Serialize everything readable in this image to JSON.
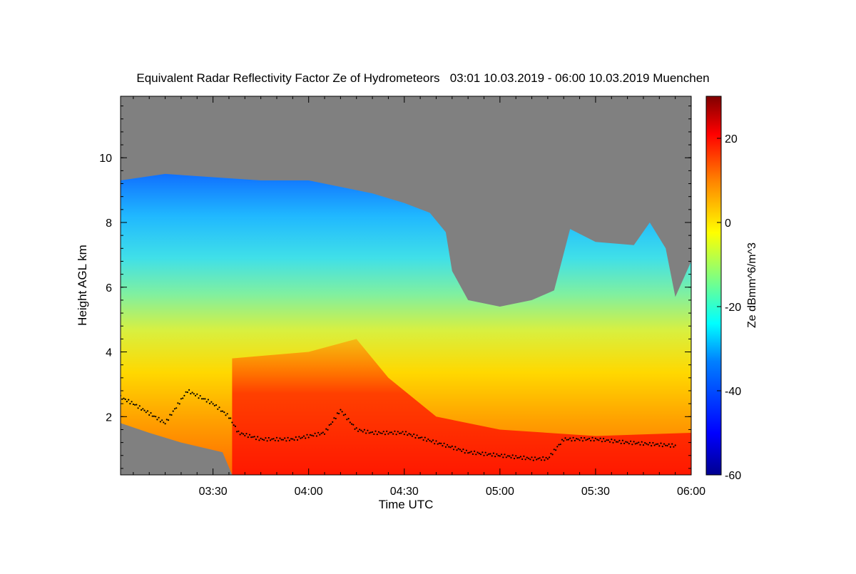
{
  "chart_data": {
    "type": "heatmap",
    "title": "Equivalent Radar Reflectivity Factor Ze of Hydrometeors   03:01 10.03.2019 - 06:00 10.03.2019 Muenchen",
    "xlabel": "Time UTC",
    "ylabel": "Height AGL km",
    "xlim": [
      "03:01",
      "06:00"
    ],
    "ylim": [
      0.2,
      11.9
    ],
    "x_ticks": [
      "03:30",
      "04:00",
      "04:30",
      "05:00",
      "05:30",
      "06:00"
    ],
    "y_ticks": [
      2,
      4,
      6,
      8,
      10
    ],
    "colorbar": {
      "label": "Ze dBmm^6/m^3",
      "range": [
        -60,
        30
      ],
      "ticks": [
        -60,
        -40,
        -20,
        0,
        20
      ],
      "colormap": [
        "#00008f",
        "#0000ff",
        "#0080ff",
        "#00ffff",
        "#80ff80",
        "#ffff00",
        "#ff8000",
        "#ff0000",
        "#800000"
      ]
    },
    "no_signal_color": "#808080",
    "echo_top_km": [
      {
        "time": "03:01",
        "height": 9.3
      },
      {
        "time": "03:15",
        "height": 9.5
      },
      {
        "time": "03:30",
        "height": 9.4
      },
      {
        "time": "03:45",
        "height": 9.3
      },
      {
        "time": "04:00",
        "height": 9.3
      },
      {
        "time": "04:10",
        "height": 9.1
      },
      {
        "time": "04:20",
        "height": 8.9
      },
      {
        "time": "04:30",
        "height": 8.6
      },
      {
        "time": "04:38",
        "height": 8.3
      },
      {
        "time": "04:43",
        "height": 7.7
      },
      {
        "time": "04:45",
        "height": 6.5
      },
      {
        "time": "04:50",
        "height": 5.6
      },
      {
        "time": "05:00",
        "height": 5.4
      },
      {
        "time": "05:10",
        "height": 5.6
      },
      {
        "time": "05:17",
        "height": 5.9
      },
      {
        "time": "05:22",
        "height": 7.8
      },
      {
        "time": "05:30",
        "height": 7.4
      },
      {
        "time": "05:42",
        "height": 7.3
      },
      {
        "time": "05:47",
        "height": 8.0
      },
      {
        "time": "05:52",
        "height": 7.2
      },
      {
        "time": "05:55",
        "height": 5.7
      },
      {
        "time": "06:00",
        "height": 6.8
      }
    ],
    "echo_base_km": [
      {
        "time": "03:01",
        "height": 1.8
      },
      {
        "time": "03:10",
        "height": 1.5
      },
      {
        "time": "03:20",
        "height": 1.2
      },
      {
        "time": "03:33",
        "height": 0.9
      },
      {
        "time": "03:36",
        "height": 0.2
      },
      {
        "time": "06:00",
        "height": 0.2
      }
    ],
    "cloud_base_km": [
      {
        "time": "03:01",
        "height": 2.6
      },
      {
        "time": "03:05",
        "height": 2.4
      },
      {
        "time": "03:10",
        "height": 2.1
      },
      {
        "time": "03:15",
        "height": 1.8
      },
      {
        "time": "03:22",
        "height": 2.8
      },
      {
        "time": "03:30",
        "height": 2.4
      },
      {
        "time": "03:35",
        "height": 2.0
      },
      {
        "time": "03:38",
        "height": 1.5
      },
      {
        "time": "03:45",
        "height": 1.3
      },
      {
        "time": "03:55",
        "height": 1.3
      },
      {
        "time": "04:05",
        "height": 1.5
      },
      {
        "time": "04:10",
        "height": 2.2
      },
      {
        "time": "04:15",
        "height": 1.6
      },
      {
        "time": "04:20",
        "height": 1.5
      },
      {
        "time": "04:30",
        "height": 1.5
      },
      {
        "time": "04:40",
        "height": 1.2
      },
      {
        "time": "04:50",
        "height": 0.9
      },
      {
        "time": "05:00",
        "height": 0.8
      },
      {
        "time": "05:10",
        "height": 0.7
      },
      {
        "time": "05:15",
        "height": 0.7
      },
      {
        "time": "05:20",
        "height": 1.3
      },
      {
        "time": "05:30",
        "height": 1.3
      },
      {
        "time": "05:40",
        "height": 1.2
      },
      {
        "time": "05:55",
        "height": 1.1
      }
    ],
    "strong_core_km": [
      {
        "time": "03:36",
        "bottom": 0.2,
        "top": 3.8
      },
      {
        "time": "04:00",
        "bottom": 0.2,
        "top": 4.0
      },
      {
        "time": "04:15",
        "bottom": 0.2,
        "top": 4.4
      },
      {
        "time": "04:25",
        "bottom": 0.2,
        "top": 3.2
      },
      {
        "time": "04:40",
        "bottom": 0.2,
        "top": 2.0
      },
      {
        "time": "05:00",
        "bottom": 0.2,
        "top": 1.6
      },
      {
        "time": "05:30",
        "bottom": 0.2,
        "top": 1.4
      },
      {
        "time": "06:00",
        "bottom": 0.2,
        "top": 1.5
      }
    ]
  }
}
